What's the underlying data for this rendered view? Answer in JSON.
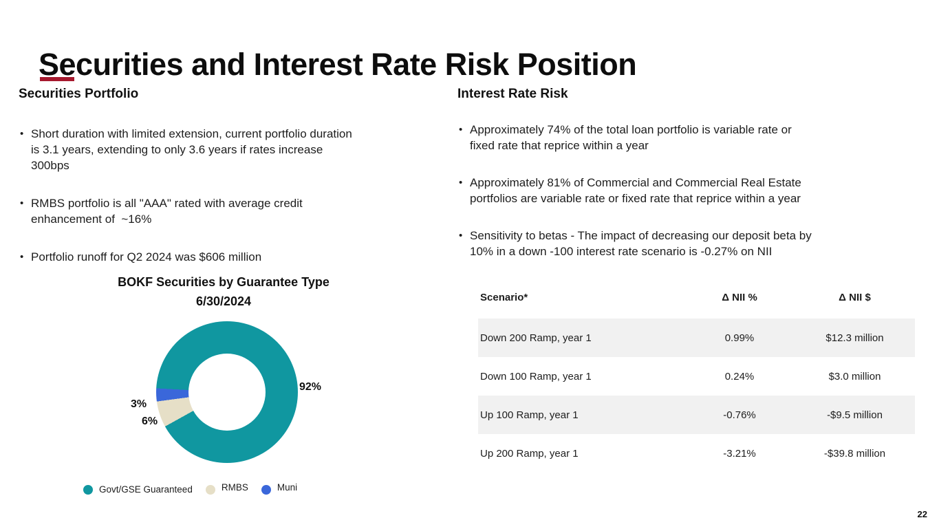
{
  "slide": {
    "title": "Securities and Interest Rate Risk Position",
    "page_number": "22",
    "accent_color": "#A6192E"
  },
  "left_column": {
    "heading": "Securities Portfolio",
    "bullets": [
      "Short duration with limited extension, current portfolio duration\nis 3.1 years, extending to only 3.6 years if rates increase\n300bps",
      "RMBS portfolio is all \"AAA\" rated with average credit\nenhancement of  ~16%",
      "Portfolio runoff for Q2 2024 was $606 million"
    ]
  },
  "right_column": {
    "heading": "Interest Rate Risk",
    "bullets": [
      "Approximately 74% of the total loan portfolio is variable rate or\nfixed rate that reprice within a year",
      "Approximately 81% of Commercial and Commercial Real Estate\nportfolios are variable rate or fixed rate that reprice within a year",
      "Sensitivity to betas - The impact of decreasing our deposit beta by\n10% in a down -100 interest rate scenario is -0.27% on NII"
    ]
  },
  "chart_data": {
    "type": "pie",
    "donut": true,
    "title": "BOKF Securities by Guarantee Type",
    "subtitle": "6/30/2024",
    "legend_position": "bottom",
    "start_angle_deg": 241,
    "draw_order": [
      1,
      2,
      0
    ],
    "series": [
      {
        "label": "Govt/GSE Guaranteed",
        "value": 92,
        "pct_label": "92%",
        "color": "#1097A0"
      },
      {
        "label": "RMBS",
        "value": 6,
        "pct_label": "6%",
        "color": "#E6DFC7"
      },
      {
        "label": "Muni",
        "value": 3,
        "pct_label": "3%",
        "color": "#3A67DA"
      }
    ]
  },
  "table": {
    "row_stripe_color": "#F1F1F1",
    "headers": [
      "Scenario*",
      "Δ NII %",
      "Δ NII $"
    ],
    "rows": [
      {
        "scenario": "Down 200 Ramp, year 1",
        "nii_pct": "0.99%",
        "nii_usd": "$12.3 million",
        "shaded": true
      },
      {
        "scenario": "Down 100 Ramp, year 1",
        "nii_pct": "0.24%",
        "nii_usd": "$3.0 million",
        "shaded": false
      },
      {
        "scenario": "Up 100 Ramp, year 1",
        "nii_pct": "-0.76%",
        "nii_usd": "-$9.5 million",
        "shaded": true
      },
      {
        "scenario": "Up 200 Ramp, year 1",
        "nii_pct": "-3.21%",
        "nii_usd": "-$39.8 million",
        "shaded": false
      }
    ]
  }
}
